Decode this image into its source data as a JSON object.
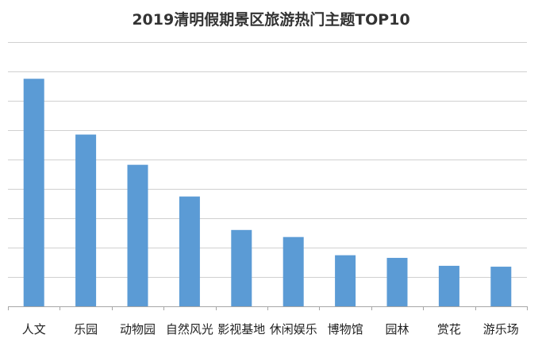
{
  "chart_data": {
    "type": "bar",
    "title": "2019清明假期景区旅游热门主题TOP10",
    "categories": [
      "人文",
      "乐园",
      "动物园",
      "自然风光",
      "影视基地",
      "休闲娱乐",
      "博物馆",
      "园林",
      "赏花",
      "游乐场"
    ],
    "values": [
      7.75,
      5.85,
      4.82,
      3.74,
      2.6,
      2.36,
      1.74,
      1.65,
      1.38,
      1.35
    ],
    "ylim": [
      0,
      9
    ],
    "ytick_step": 1,
    "grid": true,
    "xlabel": "",
    "ylabel": "",
    "colors": {
      "bar": "#5b9bd5",
      "grid": "#d0d0d0",
      "axis": "#a6a6a6",
      "title": "#333333"
    }
  }
}
